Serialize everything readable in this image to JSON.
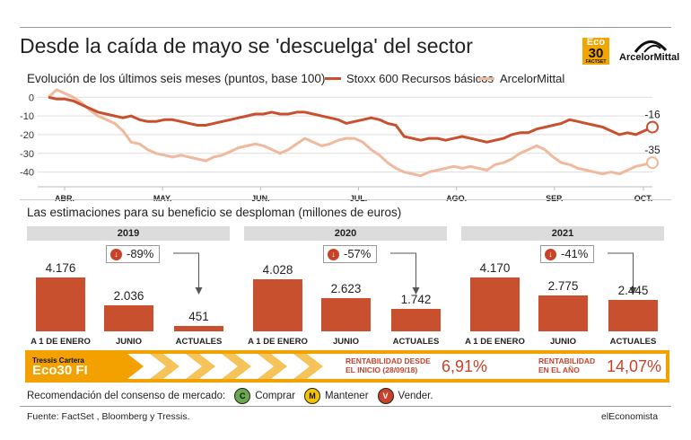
{
  "title": "Desde la caída de mayo se 'descuelga' del sector",
  "subtitle": "Evolución de los últimos seis meses (puntos, base 100)",
  "logos": {
    "eco": "Eco",
    "eco_num": "30",
    "eco_sub": "FACTSET",
    "arcelor": "ArcelorMittal"
  },
  "colors": {
    "stoxx": "#c8502e",
    "arcelor": "#f0b89c",
    "bar": "#c8502e",
    "accent": "#f2a100",
    "red": "#c8422a"
  },
  "chart_data": [
    {
      "type": "line",
      "ylim": [
        -45,
        3
      ],
      "yticks": [
        "0",
        "-10",
        "-20",
        "-30",
        "-40"
      ],
      "xticks": [
        "ABR.",
        "MAY.",
        "JUN.",
        "JUL.",
        "AGO.",
        "SEP.",
        "OCT."
      ],
      "grid": true,
      "legend_position": "top-right",
      "series": [
        {
          "name": "Stoxx 600 Recursos básicos",
          "color": "#c8502e",
          "end_label": "-16",
          "values": [
            0,
            -1,
            -1,
            -2,
            -4,
            -6,
            -8,
            -9,
            -10,
            -11,
            -10,
            -12,
            -13,
            -13,
            -12,
            -12,
            -13,
            -14,
            -15,
            -15,
            -14,
            -13,
            -12,
            -11,
            -10,
            -9,
            -9,
            -8,
            -9,
            -9,
            -8,
            -8,
            -9,
            -10,
            -11,
            -12,
            -14,
            -13,
            -12,
            -11,
            -12,
            -14,
            -15,
            -21,
            -22,
            -23,
            -22,
            -22,
            -23,
            -22,
            -21,
            -22,
            -23,
            -24,
            -23,
            -22,
            -20,
            -19,
            -19,
            -17,
            -16,
            -15,
            -14,
            -12,
            -13,
            -14,
            -15,
            -16,
            -18,
            -20,
            -19,
            -20,
            -18,
            -16
          ]
        },
        {
          "name": "ArcelorMittal",
          "color": "#f0b89c",
          "end_label": "-35",
          "values": [
            0,
            4,
            2,
            0,
            -3,
            -7,
            -10,
            -12,
            -14,
            -18,
            -24,
            -25,
            -28,
            -30,
            -31,
            -32,
            -31,
            -32,
            -33,
            -34,
            -32,
            -31,
            -29,
            -27,
            -26,
            -25,
            -26,
            -28,
            -30,
            -28,
            -25,
            -22,
            -24,
            -26,
            -25,
            -23,
            -22,
            -22,
            -24,
            -28,
            -31,
            -35,
            -38,
            -40,
            -41,
            -42,
            -40,
            -39,
            -38,
            -37,
            -38,
            -37,
            -38,
            -39,
            -36,
            -35,
            -33,
            -30,
            -28,
            -26,
            -28,
            -32,
            -35,
            -36,
            -38,
            -39,
            -40,
            -41,
            -40,
            -41,
            -39,
            -37,
            -36,
            -35
          ]
        }
      ]
    },
    {
      "type": "bar",
      "title": "Las estimaciones para su beneficio se desploman (millones de euros)",
      "categories": [
        "A 1 DE ENERO",
        "JUNIO",
        "ACTUALES"
      ],
      "groups": [
        {
          "year": "2019",
          "change": "-89%",
          "values": [
            4176,
            2036,
            451
          ],
          "labels": [
            "4.176",
            "2.036",
            "451"
          ]
        },
        {
          "year": "2020",
          "change": "-57%",
          "values": [
            4028,
            2623,
            1742
          ],
          "labels": [
            "4.028",
            "2.623",
            "1.742"
          ]
        },
        {
          "year": "2021",
          "change": "-41%",
          "values": [
            4170,
            2775,
            2445
          ],
          "labels": [
            "4.170",
            "2.775",
            "2.445"
          ]
        }
      ]
    }
  ],
  "fund": {
    "name": "Tressis Cartera",
    "logo": "Eco30 FI",
    "r1_label_a": "RENTABILIDAD DESDE",
    "r1_label_b": "EL INICIO (28/09/18)",
    "r1_value": "6,91%",
    "r2_label_a": "RENTABILIDAD",
    "r2_label_b": "EN EL AÑO",
    "r2_value": "14,07%"
  },
  "recommendation": {
    "label": "Recomendación del consenso de mercado:",
    "items": [
      {
        "letter": "C",
        "text": "Comprar",
        "color": "#6aa84f"
      },
      {
        "letter": "M",
        "text": "Mantener",
        "color": "#f2c200"
      },
      {
        "letter": "V",
        "text": "Vender.",
        "color": "#c8422a"
      }
    ]
  },
  "footer": {
    "source": "Fuente: FactSet , Bloomberg y Tressis.",
    "brand": "elEconomista"
  }
}
